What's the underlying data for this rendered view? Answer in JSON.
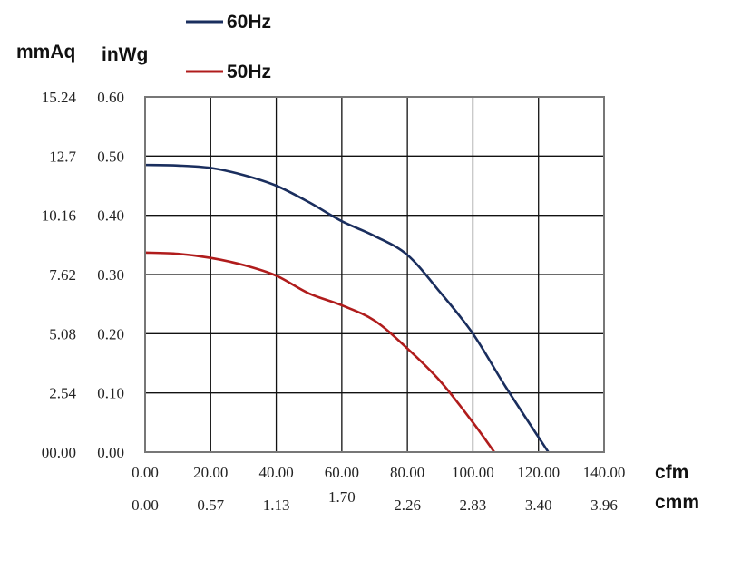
{
  "chart_data": {
    "type": "line",
    "title": "",
    "xlabel": "cfm",
    "xlabel_secondary": "cmm",
    "ylabel": "inWg",
    "ylabel_secondary": "mmAq",
    "xlim": [
      0,
      140
    ],
    "ylim": [
      0,
      0.6
    ],
    "grid": true,
    "legend_position": "top",
    "x_ticks": [
      "0.00",
      "20.00",
      "40.00",
      "60.00",
      "80.00",
      "100.00",
      "120.00",
      "140.00"
    ],
    "x_ticks_secondary": [
      "0.00",
      "0.57",
      "1.13",
      "1.70",
      "2.26",
      "2.83",
      "3.40",
      "3.96"
    ],
    "y_ticks": [
      "0.00",
      "0.10",
      "0.20",
      "0.30",
      "0.40",
      "0.50",
      "0.60"
    ],
    "y_ticks_secondary": [
      "00.00",
      "2.54",
      "5.08",
      "7.62",
      "10.16",
      "12.7",
      "15.24"
    ],
    "series": [
      {
        "name": "60Hz",
        "color": "#1a2e5e",
        "x": [
          0,
          10,
          20,
          30,
          40,
          50,
          60,
          70,
          80,
          90,
          100,
          110,
          123
        ],
        "y": [
          0.485,
          0.484,
          0.48,
          0.468,
          0.45,
          0.422,
          0.39,
          0.365,
          0.333,
          0.27,
          0.2,
          0.11,
          0
        ]
      },
      {
        "name": "50Hz",
        "color": "#b01c1c",
        "x": [
          0,
          10,
          20,
          30,
          40,
          50,
          60,
          70,
          80,
          90,
          100,
          106.5
        ],
        "y": [
          0.337,
          0.335,
          0.328,
          0.316,
          0.298,
          0.268,
          0.248,
          0.222,
          0.175,
          0.12,
          0.05,
          0
        ]
      }
    ]
  }
}
